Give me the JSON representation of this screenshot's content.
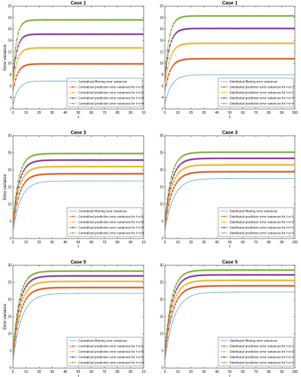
{
  "chart_data": [
    {
      "type": "line",
      "title": "Case 1",
      "xlabel": "t",
      "ylabel": "Error variance",
      "xlim": [
        0,
        100
      ],
      "ylim": [
        2,
        20
      ],
      "xticks": [
        "0",
        "10",
        "20",
        "30",
        "40",
        "50",
        "60",
        "70",
        "80",
        "90",
        "10"
      ],
      "yticks": [
        "2",
        "4",
        "6",
        "8",
        "10",
        "12",
        "14",
        "16",
        "18",
        "20"
      ],
      "legend_position": "bottom-right",
      "series": [
        {
          "name": "Centralized filtering error variances",
          "color": "#4A9BD1",
          "marker": "none",
          "start": 2.6,
          "end": 6.9,
          "rate": 0.25
        },
        {
          "name": "Centralized prediction error variances for l=s+1",
          "color": "#D95319",
          "marker": "star",
          "start": 5.0,
          "end": 9.9,
          "rate": 0.3
        },
        {
          "name": "Centralized prediction error variances for l=s+2",
          "color": "#EDB120",
          "marker": "star",
          "start": 6.0,
          "end": 12.7,
          "rate": 0.32
        },
        {
          "name": "Centralized prediction error variances for l=s+3",
          "color": "#7E2F8E",
          "marker": "star",
          "start": 7.0,
          "end": 15.1,
          "rate": 0.34
        },
        {
          "name": "Centralized prediction error variances for l=s+4",
          "color": "#77AC30",
          "marker": "star",
          "start": 7.5,
          "end": 17.6,
          "rate": 0.36
        }
      ]
    },
    {
      "type": "line",
      "title": "Case 1",
      "xlabel": "t",
      "ylabel": "",
      "xlim": [
        0,
        100
      ],
      "ylim": [
        2,
        20
      ],
      "xticks": [
        "0",
        "10",
        "20",
        "30",
        "40",
        "50",
        "60",
        "70",
        "80",
        "90",
        "100"
      ],
      "yticks": [
        "2",
        "4",
        "6",
        "8",
        "10",
        "12",
        "14",
        "16",
        "18",
        "20"
      ],
      "legend_position": "bottom-right",
      "series": [
        {
          "name": "Distributed filtering error variances",
          "color": "#4A9BD1",
          "marker": "none",
          "start": 2.8,
          "end": 8.0,
          "rate": 0.2
        },
        {
          "name": "Distributed prediction error variances for l=s+1",
          "color": "#D95319",
          "marker": "star",
          "start": 5.0,
          "end": 10.8,
          "rate": 0.25
        },
        {
          "name": "Distributed prediction error variances for l=s+2",
          "color": "#EDB120",
          "marker": "star",
          "start": 6.0,
          "end": 13.5,
          "rate": 0.26
        },
        {
          "name": "Distributed prediction error variances for l=s+3",
          "color": "#7E2F8E",
          "marker": "star",
          "start": 7.0,
          "end": 16.1,
          "rate": 0.28
        },
        {
          "name": "Distributed prediction error variances for l=s+4",
          "color": "#77AC30",
          "marker": "star",
          "start": 7.5,
          "end": 18.3,
          "rate": 0.3
        }
      ]
    },
    {
      "type": "line",
      "title": "Case 3",
      "xlabel": "t",
      "ylabel": "Error variance",
      "xlim": [
        0,
        100
      ],
      "ylim": [
        0,
        30
      ],
      "xticks": [
        "0",
        "10",
        "20",
        "30",
        "40",
        "50",
        "60",
        "70",
        "80",
        "90",
        "10"
      ],
      "yticks": [
        "0",
        "5",
        "10",
        "15",
        "20",
        "25",
        "30"
      ],
      "legend_position": "bottom-right",
      "series": [
        {
          "name": "Centralized filtering error variances",
          "color": "#4A9BD1",
          "marker": "none",
          "start": 2.0,
          "end": 16.8,
          "rate": 0.17
        },
        {
          "name": "Centralized prediction error variances for l=s+1",
          "color": "#D95319",
          "marker": "star",
          "start": 3.0,
          "end": 18.9,
          "rate": 0.2
        },
        {
          "name": "Centralized prediction error variances for l=s+2",
          "color": "#EDB120",
          "marker": "star",
          "start": 3.5,
          "end": 21.0,
          "rate": 0.21
        },
        {
          "name": "Centralized prediction error variances for l=s+3",
          "color": "#7E2F8E",
          "marker": "star",
          "start": 4.0,
          "end": 22.9,
          "rate": 0.22
        },
        {
          "name": "Centralized prediction error variances for l=s+4",
          "color": "#77AC30",
          "marker": "star",
          "start": 4.5,
          "end": 24.8,
          "rate": 0.23
        }
      ]
    },
    {
      "type": "line",
      "title": "Case 3",
      "xlabel": "t",
      "ylabel": "",
      "xlim": [
        0,
        100
      ],
      "ylim": [
        0,
        30
      ],
      "xticks": [
        "0",
        "10",
        "20",
        "30",
        "40",
        "50",
        "60",
        "70",
        "80",
        "90",
        "100"
      ],
      "yticks": [
        "0",
        "5",
        "10",
        "15",
        "20",
        "25",
        "30"
      ],
      "legend_position": "bottom-right",
      "series": [
        {
          "name": "Distributed filtering error variances",
          "color": "#4A9BD1",
          "marker": "none",
          "start": 2.0,
          "end": 17.5,
          "rate": 0.15
        },
        {
          "name": "Distributed prediction error variances for l=s+1",
          "color": "#D95319",
          "marker": "star",
          "start": 3.0,
          "end": 19.5,
          "rate": 0.18
        },
        {
          "name": "Distributed prediction error variances for l=s+2",
          "color": "#EDB120",
          "marker": "star",
          "start": 3.5,
          "end": 21.5,
          "rate": 0.19
        },
        {
          "name": "Distributed prediction error variances for l=s+3",
          "color": "#7E2F8E",
          "marker": "star",
          "start": 4.0,
          "end": 23.4,
          "rate": 0.2
        },
        {
          "name": "Distributed prediction error variances for l=s+4",
          "color": "#77AC30",
          "marker": "star",
          "start": 4.5,
          "end": 25.2,
          "rate": 0.21
        }
      ]
    },
    {
      "type": "line",
      "title": "Case 5",
      "xlabel": "t",
      "ylabel": "Error variance",
      "xlim": [
        0,
        100
      ],
      "ylim": [
        0,
        30
      ],
      "xticks": [
        "0",
        "10",
        "20",
        "30",
        "40",
        "50",
        "60",
        "70",
        "80",
        "90",
        "10"
      ],
      "yticks": [
        "0",
        "5",
        "10",
        "15",
        "20",
        "25",
        "30"
      ],
      "legend_position": "bottom-right",
      "series": [
        {
          "name": "Centralized filtering error variances",
          "color": "#4A9BD1",
          "marker": "none",
          "start": 2.0,
          "end": 21.8,
          "rate": 0.15
        },
        {
          "name": "Centralized prediction error variances for l=s+1",
          "color": "#D95319",
          "marker": "star",
          "start": 3.0,
          "end": 23.5,
          "rate": 0.18
        },
        {
          "name": "Centralized prediction error variances for l=s+2",
          "color": "#EDB120",
          "marker": "star",
          "start": 3.5,
          "end": 25.3,
          "rate": 0.19
        },
        {
          "name": "Centralized prediction error variances for l=s+3",
          "color": "#7E2F8E",
          "marker": "star",
          "start": 4.0,
          "end": 26.9,
          "rate": 0.2
        },
        {
          "name": "Centralized prediction error variances for l=s+4",
          "color": "#77AC30",
          "marker": "star",
          "start": 4.5,
          "end": 28.3,
          "rate": 0.21
        }
      ]
    },
    {
      "type": "line",
      "title": "Case 5",
      "xlabel": "t",
      "ylabel": "",
      "xlim": [
        0,
        100
      ],
      "ylim": [
        0,
        30
      ],
      "xticks": [
        "0",
        "10",
        "20",
        "30",
        "40",
        "50",
        "60",
        "70",
        "80",
        "90",
        "100"
      ],
      "yticks": [
        "0",
        "5",
        "10",
        "15",
        "20",
        "25",
        "30"
      ],
      "legend_position": "bottom-right",
      "series": [
        {
          "name": "Distributed filtering error variances",
          "color": "#4A9BD1",
          "marker": "none",
          "start": 2.0,
          "end": 22.2,
          "rate": 0.14
        },
        {
          "name": "Distributed prediction error variances for l=s+1",
          "color": "#D95319",
          "marker": "star",
          "start": 3.0,
          "end": 24.0,
          "rate": 0.17
        },
        {
          "name": "Distributed prediction error variances for l=s+2",
          "color": "#EDB120",
          "marker": "star",
          "start": 3.5,
          "end": 25.6,
          "rate": 0.18
        },
        {
          "name": "Distributed prediction error variances for l=s+3",
          "color": "#7E2F8E",
          "marker": "star",
          "start": 4.0,
          "end": 27.2,
          "rate": 0.19
        },
        {
          "name": "Distributed prediction error variances for l=s+4",
          "color": "#77AC30",
          "marker": "star",
          "start": 4.5,
          "end": 28.6,
          "rate": 0.2
        }
      ]
    }
  ]
}
